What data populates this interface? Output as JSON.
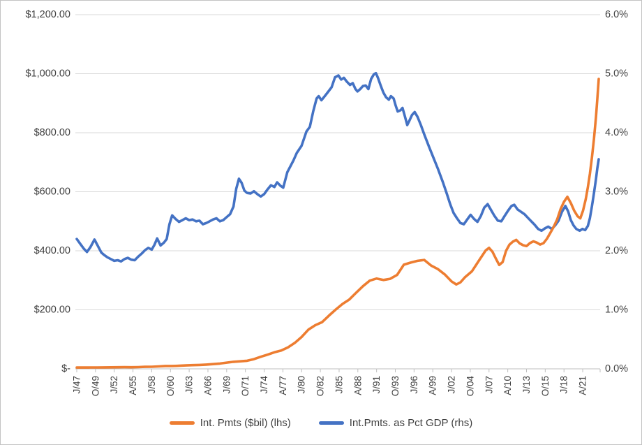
{
  "chart_data": {
    "type": "line",
    "title": "",
    "x_axis": {
      "labels": [
        "J/47",
        "O/49",
        "J/52",
        "A/55",
        "J/58",
        "O/60",
        "J/63",
        "A/66",
        "J/69",
        "O/71",
        "J/74",
        "A/77",
        "J/80",
        "O/82",
        "J/85",
        "A/88",
        "J/91",
        "O/93",
        "J/96",
        "A/99",
        "J/02",
        "O/04",
        "J/07",
        "A/10",
        "J/13",
        "O/15",
        "J/18",
        "A/21"
      ],
      "tick_years": [
        1947,
        1949.75,
        1952.5,
        1955.25,
        1958,
        1960.75,
        1963.5,
        1966.25,
        1969,
        1971.75,
        1974.5,
        1977.25,
        1980,
        1982.75,
        1985.5,
        1988.25,
        1991,
        1993.75,
        1996.5,
        1999.25,
        2002,
        2004.75,
        2007.5,
        2010.25,
        2013,
        2015.75,
        2018.5,
        2021.25
      ],
      "range_years": [
        1947,
        2023.6
      ]
    },
    "y_axis_left": {
      "tick_labels": [
        "$1,200.00",
        "$1,000.00",
        "$800.00",
        "$600.00",
        "$400.00",
        "$200.00",
        "$-"
      ],
      "tick_values": [
        1200,
        1000,
        800,
        600,
        400,
        200,
        0
      ],
      "max": 1200,
      "min": 0
    },
    "y_axis_right": {
      "tick_labels": [
        "6.0%",
        "5.0%",
        "4.0%",
        "3.0%",
        "2.0%",
        "1.0%",
        "0.0%"
      ],
      "tick_values": [
        6,
        5,
        4,
        3,
        2,
        1,
        0
      ],
      "max": 6,
      "min": 0
    },
    "grid": "horizontal",
    "legend_position": "bottom",
    "colors": {
      "orange": "#ED7D31",
      "blue": "#4472C4",
      "gridline": "#D9D9D9",
      "axis": "#BFBFBF",
      "text": "#3f3f3f"
    },
    "series": [
      {
        "name": "Int. Pmts ($bil) (lhs)",
        "axis": "left",
        "color": "#ED7D31",
        "points": [
          [
            1947,
            4.5
          ],
          [
            1948,
            4.6
          ],
          [
            1949,
            4.7
          ],
          [
            1950,
            4.8
          ],
          [
            1951,
            5.0
          ],
          [
            1952,
            5.2
          ],
          [
            1953,
            5.5
          ],
          [
            1954,
            5.6
          ],
          [
            1955,
            5.5
          ],
          [
            1956,
            6.0
          ],
          [
            1957,
            6.8
          ],
          [
            1958,
            7.2
          ],
          [
            1959,
            8.2
          ],
          [
            1960,
            9.8
          ],
          [
            1961,
            9.6
          ],
          [
            1962,
            10.5
          ],
          [
            1963,
            11.5
          ],
          [
            1964,
            12.5
          ],
          [
            1965,
            13.2
          ],
          [
            1966,
            14.5
          ],
          [
            1967,
            16.0
          ],
          [
            1968,
            18.0
          ],
          [
            1969,
            21.0
          ],
          [
            1970,
            24.0
          ],
          [
            1971,
            25.5
          ],
          [
            1972,
            27.5
          ],
          [
            1973,
            33.0
          ],
          [
            1974,
            41.0
          ],
          [
            1975,
            48.0
          ],
          [
            1976,
            56.0
          ],
          [
            1977,
            62.0
          ],
          [
            1978,
            73.0
          ],
          [
            1979,
            88.0
          ],
          [
            1980,
            108
          ],
          [
            1981,
            133
          ],
          [
            1982,
            148
          ],
          [
            1983,
            158
          ],
          [
            1984,
            180
          ],
          [
            1985,
            201
          ],
          [
            1986,
            220
          ],
          [
            1987,
            235
          ],
          [
            1988,
            258
          ],
          [
            1989,
            280
          ],
          [
            1990,
            299
          ],
          [
            1991,
            306
          ],
          [
            1992,
            301
          ],
          [
            1993,
            305
          ],
          [
            1994,
            318
          ],
          [
            1995,
            353
          ],
          [
            1996,
            360
          ],
          [
            1997,
            366
          ],
          [
            1998,
            369
          ],
          [
            1999,
            350
          ],
          [
            2000,
            338
          ],
          [
            2001,
            320
          ],
          [
            2002,
            296
          ],
          [
            2002.7,
            286
          ],
          [
            2003.3,
            293
          ],
          [
            2004,
            311
          ],
          [
            2005,
            331
          ],
          [
            2006,
            366
          ],
          [
            2007,
            401
          ],
          [
            2007.5,
            410
          ],
          [
            2008,
            397
          ],
          [
            2008.5,
            374
          ],
          [
            2009,
            352
          ],
          [
            2009.5,
            362
          ],
          [
            2010,
            400
          ],
          [
            2010.5,
            421
          ],
          [
            2011,
            431
          ],
          [
            2011.5,
            437
          ],
          [
            2012,
            425
          ],
          [
            2012.5,
            419
          ],
          [
            2013,
            416
          ],
          [
            2013.5,
            426
          ],
          [
            2014,
            432
          ],
          [
            2014.5,
            428
          ],
          [
            2015,
            421
          ],
          [
            2015.5,
            426
          ],
          [
            2016,
            441
          ],
          [
            2016.5,
            461
          ],
          [
            2017,
            482
          ],
          [
            2017.5,
            506
          ],
          [
            2018,
            541
          ],
          [
            2018.5,
            566
          ],
          [
            2019,
            583
          ],
          [
            2019.5,
            562
          ],
          [
            2020,
            536
          ],
          [
            2020.5,
            517
          ],
          [
            2020.9,
            510
          ],
          [
            2021.3,
            536
          ],
          [
            2021.7,
            575
          ],
          [
            2022,
            615
          ],
          [
            2022.3,
            660
          ],
          [
            2022.6,
            715
          ],
          [
            2022.9,
            780
          ],
          [
            2023.2,
            855
          ],
          [
            2023.4,
            915
          ],
          [
            2023.6,
            982
          ]
        ]
      },
      {
        "name": "Int.Pmts. as Pct GDP (rhs)",
        "axis": "right",
        "color": "#4472C4",
        "points": [
          [
            1947,
            2.2
          ],
          [
            1947.5,
            2.12
          ],
          [
            1948,
            2.04
          ],
          [
            1948.5,
            1.98
          ],
          [
            1949,
            2.06
          ],
          [
            1949.6,
            2.19
          ],
          [
            1950.1,
            2.08
          ],
          [
            1950.6,
            1.97
          ],
          [
            1951,
            1.93
          ],
          [
            1951.5,
            1.89
          ],
          [
            1952,
            1.86
          ],
          [
            1952.5,
            1.83
          ],
          [
            1953,
            1.84
          ],
          [
            1953.5,
            1.82
          ],
          [
            1954,
            1.86
          ],
          [
            1954.5,
            1.88
          ],
          [
            1955,
            1.85
          ],
          [
            1955.5,
            1.84
          ],
          [
            1956,
            1.9
          ],
          [
            1956.5,
            1.95
          ],
          [
            1957,
            2.01
          ],
          [
            1957.5,
            2.05
          ],
          [
            1958,
            2.02
          ],
          [
            1958.4,
            2.1
          ],
          [
            1958.8,
            2.21
          ],
          [
            1959.3,
            2.09
          ],
          [
            1959.8,
            2.14
          ],
          [
            1960.2,
            2.2
          ],
          [
            1960.6,
            2.45
          ],
          [
            1961,
            2.6
          ],
          [
            1961.5,
            2.54
          ],
          [
            1962,
            2.49
          ],
          [
            1962.5,
            2.52
          ],
          [
            1963,
            2.55
          ],
          [
            1963.5,
            2.52
          ],
          [
            1964,
            2.53
          ],
          [
            1964.5,
            2.5
          ],
          [
            1965,
            2.51
          ],
          [
            1965.5,
            2.45
          ],
          [
            1966,
            2.47
          ],
          [
            1966.5,
            2.5
          ],
          [
            1967,
            2.53
          ],
          [
            1967.5,
            2.55
          ],
          [
            1968,
            2.5
          ],
          [
            1968.5,
            2.52
          ],
          [
            1969,
            2.57
          ],
          [
            1969.5,
            2.62
          ],
          [
            1970,
            2.75
          ],
          [
            1970.4,
            3.05
          ],
          [
            1970.8,
            3.22
          ],
          [
            1971.2,
            3.15
          ],
          [
            1971.6,
            3.02
          ],
          [
            1972,
            2.98
          ],
          [
            1972.5,
            2.97
          ],
          [
            1973,
            3.01
          ],
          [
            1973.5,
            2.96
          ],
          [
            1974,
            2.92
          ],
          [
            1974.5,
            2.96
          ],
          [
            1975,
            3.04
          ],
          [
            1975.5,
            3.11
          ],
          [
            1976,
            3.08
          ],
          [
            1976.4,
            3.16
          ],
          [
            1976.9,
            3.1
          ],
          [
            1977.3,
            3.07
          ],
          [
            1977.9,
            3.33
          ],
          [
            1978.8,
            3.53
          ],
          [
            1979.3,
            3.66
          ],
          [
            1980,
            3.78
          ],
          [
            1980.7,
            4.02
          ],
          [
            1981.2,
            4.1
          ],
          [
            1981.7,
            4.36
          ],
          [
            1982.2,
            4.58
          ],
          [
            1982.5,
            4.62
          ],
          [
            1982.9,
            4.55
          ],
          [
            1983.4,
            4.62
          ],
          [
            1983.8,
            4.68
          ],
          [
            1984.4,
            4.77
          ],
          [
            1984.9,
            4.94
          ],
          [
            1985.4,
            4.97
          ],
          [
            1985.8,
            4.9
          ],
          [
            1986.2,
            4.93
          ],
          [
            1986.6,
            4.87
          ],
          [
            1987.1,
            4.81
          ],
          [
            1987.5,
            4.84
          ],
          [
            1987.9,
            4.74
          ],
          [
            1988.2,
            4.7
          ],
          [
            1988.6,
            4.74
          ],
          [
            1989,
            4.79
          ],
          [
            1989.4,
            4.8
          ],
          [
            1989.8,
            4.74
          ],
          [
            1990.2,
            4.91
          ],
          [
            1990.6,
            4.99
          ],
          [
            1990.9,
            5.01
          ],
          [
            1991.2,
            4.93
          ],
          [
            1991.6,
            4.8
          ],
          [
            1992,
            4.68
          ],
          [
            1992.4,
            4.6
          ],
          [
            1992.8,
            4.56
          ],
          [
            1993.1,
            4.62
          ],
          [
            1993.5,
            4.58
          ],
          [
            1993.8,
            4.46
          ],
          [
            1994.1,
            4.36
          ],
          [
            1994.5,
            4.38
          ],
          [
            1994.8,
            4.42
          ],
          [
            1995.1,
            4.3
          ],
          [
            1995.5,
            4.13
          ],
          [
            1995.8,
            4.2
          ],
          [
            1996.2,
            4.3
          ],
          [
            1996.6,
            4.35
          ],
          [
            1997,
            4.27
          ],
          [
            1997.5,
            4.13
          ],
          [
            1998,
            3.97
          ],
          [
            1998.7,
            3.76
          ],
          [
            1999.4,
            3.56
          ],
          [
            2000,
            3.39
          ],
          [
            2000.7,
            3.17
          ],
          [
            2001.3,
            2.97
          ],
          [
            2001.8,
            2.79
          ],
          [
            2002.3,
            2.64
          ],
          [
            2002.8,
            2.55
          ],
          [
            2003.3,
            2.47
          ],
          [
            2003.8,
            2.45
          ],
          [
            2004.3,
            2.53
          ],
          [
            2004.8,
            2.61
          ],
          [
            2005.3,
            2.54
          ],
          [
            2005.8,
            2.49
          ],
          [
            2006.3,
            2.59
          ],
          [
            2006.8,
            2.73
          ],
          [
            2007.3,
            2.79
          ],
          [
            2007.8,
            2.69
          ],
          [
            2008.3,
            2.59
          ],
          [
            2008.8,
            2.51
          ],
          [
            2009.3,
            2.5
          ],
          [
            2009.8,
            2.59
          ],
          [
            2010.3,
            2.68
          ],
          [
            2010.8,
            2.76
          ],
          [
            2011.2,
            2.78
          ],
          [
            2011.7,
            2.7
          ],
          [
            2012.2,
            2.66
          ],
          [
            2012.7,
            2.62
          ],
          [
            2013.2,
            2.56
          ],
          [
            2013.7,
            2.5
          ],
          [
            2014.2,
            2.44
          ],
          [
            2014.7,
            2.37
          ],
          [
            2015.2,
            2.34
          ],
          [
            2015.7,
            2.38
          ],
          [
            2016.2,
            2.41
          ],
          [
            2016.7,
            2.37
          ],
          [
            2017.2,
            2.43
          ],
          [
            2017.7,
            2.51
          ],
          [
            2018.2,
            2.66
          ],
          [
            2018.7,
            2.76
          ],
          [
            2019.1,
            2.67
          ],
          [
            2019.5,
            2.52
          ],
          [
            2019.9,
            2.43
          ],
          [
            2020.3,
            2.37
          ],
          [
            2020.8,
            2.34
          ],
          [
            2021.2,
            2.37
          ],
          [
            2021.6,
            2.35
          ],
          [
            2022,
            2.42
          ],
          [
            2022.3,
            2.55
          ],
          [
            2022.6,
            2.75
          ],
          [
            2022.9,
            2.98
          ],
          [
            2023.2,
            3.22
          ],
          [
            2023.4,
            3.4
          ],
          [
            2023.6,
            3.55
          ]
        ]
      }
    ]
  },
  "legend": {
    "items": [
      {
        "label": "Int. Pmts ($bil) (lhs)",
        "color": "#ED7D31"
      },
      {
        "label": "Int.Pmts. as Pct GDP (rhs)",
        "color": "#4472C4"
      }
    ]
  }
}
